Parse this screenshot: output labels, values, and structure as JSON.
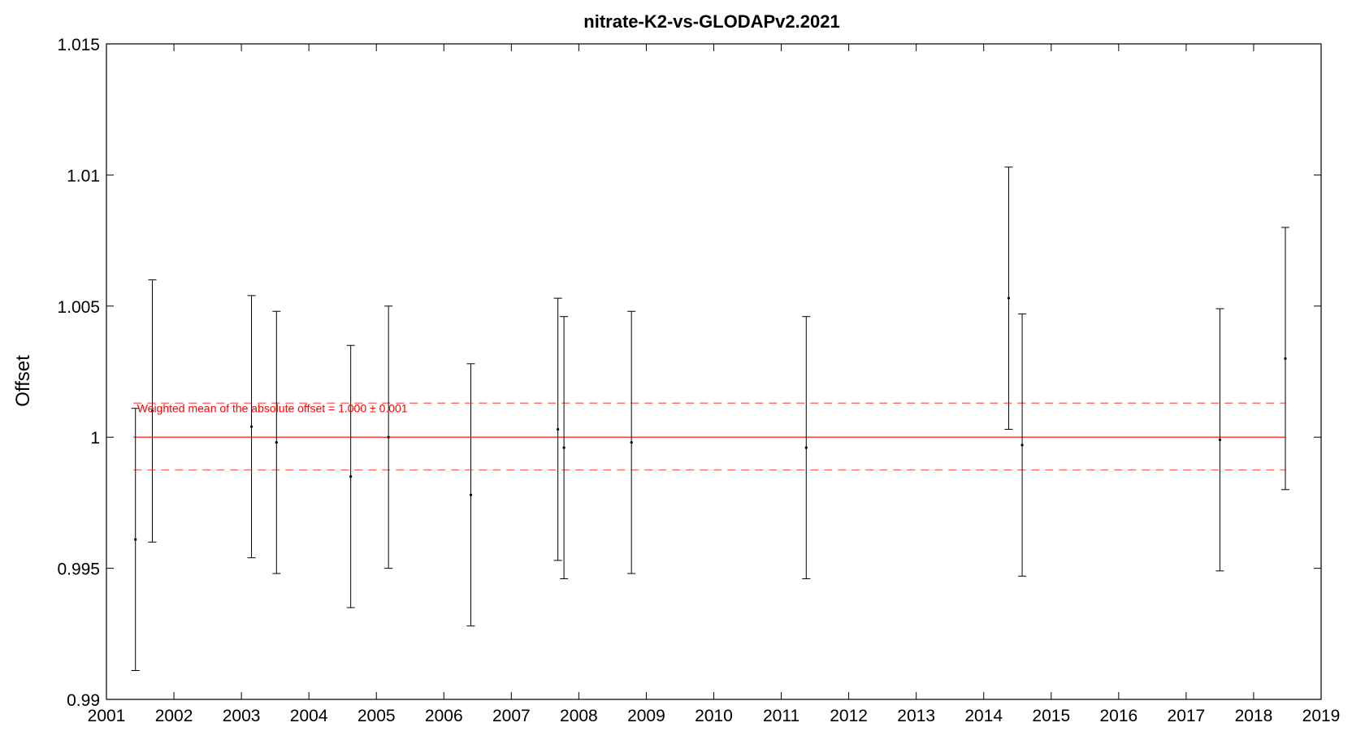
{
  "chart_data": {
    "type": "scatter",
    "title": "nitrate-K2-vs-GLODAPv2.2021",
    "xlabel": "",
    "ylabel": "Offset",
    "xlim": [
      2001,
      2019
    ],
    "ylim": [
      0.99,
      1.015
    ],
    "x_ticks": [
      2001,
      2002,
      2003,
      2004,
      2005,
      2006,
      2007,
      2008,
      2009,
      2010,
      2011,
      2012,
      2013,
      2014,
      2015,
      2016,
      2017,
      2018,
      2019
    ],
    "x_tick_labels": [
      "2001",
      "2002",
      "2003",
      "2004",
      "2005",
      "2006",
      "2007",
      "2008",
      "2009",
      "2010",
      "2011",
      "2012",
      "2013",
      "2014",
      "2015",
      "2016",
      "2017",
      "2018",
      "2019"
    ],
    "y_ticks": [
      0.99,
      0.995,
      1.0,
      1.005,
      1.01,
      1.015
    ],
    "y_tick_labels": [
      "0.99",
      "0.995",
      "1",
      "1.005",
      "1.01",
      "1.015"
    ],
    "grid": false,
    "points": [
      {
        "x": 2001.43,
        "y": 0.9961,
        "lower": 0.9911,
        "upper": 1.0011
      },
      {
        "x": 2001.68,
        "y": 1.001,
        "lower": 0.996,
        "upper": 1.006
      },
      {
        "x": 2003.15,
        "y": 1.0004,
        "lower": 0.9954,
        "upper": 1.0054
      },
      {
        "x": 2003.52,
        "y": 0.9998,
        "lower": 0.9948,
        "upper": 1.0048
      },
      {
        "x": 2004.62,
        "y": 0.9985,
        "lower": 0.9935,
        "upper": 1.0035
      },
      {
        "x": 2005.18,
        "y": 1.0,
        "lower": 0.995,
        "upper": 1.005
      },
      {
        "x": 2006.4,
        "y": 0.9978,
        "lower": 0.9928,
        "upper": 1.0028
      },
      {
        "x": 2007.69,
        "y": 1.0003,
        "lower": 0.9953,
        "upper": 1.0053
      },
      {
        "x": 2007.78,
        "y": 0.9996,
        "lower": 0.9946,
        "upper": 1.0046
      },
      {
        "x": 2008.78,
        "y": 0.9998,
        "lower": 0.9948,
        "upper": 1.0048
      },
      {
        "x": 2011.37,
        "y": 0.9996,
        "lower": 0.9946,
        "upper": 1.0046
      },
      {
        "x": 2014.37,
        "y": 1.0053,
        "lower": 1.0003,
        "upper": 1.0103
      },
      {
        "x": 2014.57,
        "y": 0.9997,
        "lower": 0.9947,
        "upper": 1.0047
      },
      {
        "x": 2017.5,
        "y": 0.9999,
        "lower": 0.9949,
        "upper": 1.0049
      },
      {
        "x": 2018.47,
        "y": 1.003,
        "lower": 0.998,
        "upper": 1.008
      }
    ],
    "reference_lines": {
      "mean": 1.0,
      "upper": 1.0013,
      "lower": 0.99875,
      "x_start": 2001.4,
      "x_end": 2018.47
    },
    "annotation": "Weighted mean of the absolute offset = 1.000 ± 0.001",
    "annotation_x": 2001.43,
    "annotation_y": 1.0011,
    "colors": {
      "points": "#000000",
      "mean_line": "#ff0000",
      "band_lines": "#ff5a5a",
      "annotation": "#ff0000",
      "axes": "#000000"
    }
  }
}
